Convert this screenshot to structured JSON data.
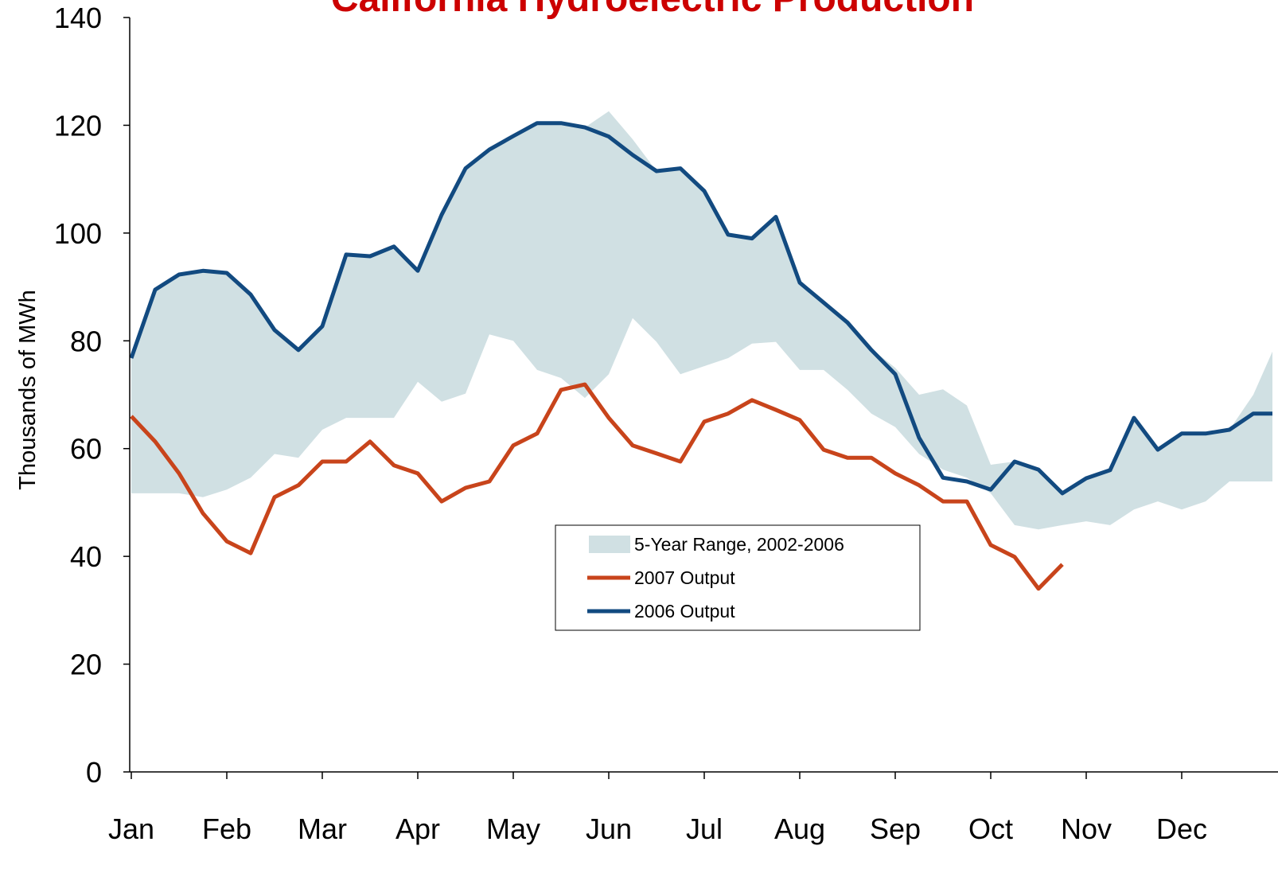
{
  "chart_data": {
    "type": "line",
    "title": "California Hydroelectric Production",
    "y_label": "Thousands of MWh",
    "xlim": [
      0,
      12
    ],
    "xticks": [
      {
        "value": 0,
        "label": "Jan"
      },
      {
        "value": 1,
        "label": "Feb"
      },
      {
        "value": 2,
        "label": "Mar"
      },
      {
        "value": 3,
        "label": "Apr"
      },
      {
        "value": 4,
        "label": "May"
      },
      {
        "value": 5,
        "label": "Jun"
      },
      {
        "value": 6,
        "label": "Jul"
      },
      {
        "value": 7,
        "label": "Aug"
      },
      {
        "value": 8,
        "label": "Sep"
      },
      {
        "value": 9,
        "label": "Oct"
      },
      {
        "value": 10,
        "label": "Nov"
      },
      {
        "value": 11,
        "label": "Dec"
      }
    ],
    "ylim": [
      0,
      140
    ],
    "yticks": [
      0,
      20,
      40,
      60,
      80,
      100,
      120,
      140
    ],
    "x": [
      0,
      0.25,
      0.5,
      0.75,
      1,
      1.25,
      1.5,
      1.75,
      2,
      2.25,
      2.5,
      2.75,
      3,
      3.25,
      3.5,
      3.75,
      4,
      4.25,
      4.5,
      4.75,
      5,
      5.25,
      5.5,
      5.75,
      6,
      6.25,
      6.5,
      6.75,
      7,
      7.25,
      7.5,
      7.75,
      8,
      8.25,
      8.5,
      8.75,
      9,
      9.25,
      9.5,
      9.75,
      10,
      10.25,
      10.5,
      10.75,
      11,
      11.25,
      11.5,
      11.75,
      11.95
    ],
    "series": [
      {
        "name": "5-Year Range, 2002-2006",
        "type": "range",
        "color": "#d0e0e3",
        "values": [
          77,
          89.5,
          92.3,
          93,
          92.6,
          88.6,
          82,
          78.3,
          82.7,
          96,
          95.7,
          97.5,
          93,
          103.4,
          112,
          115.5,
          118,
          120.4,
          120.4,
          119.6,
          122.6,
          117.4,
          111.5,
          112,
          107.8,
          99.7,
          99,
          103,
          90.8,
          87.1,
          83.4,
          78.5,
          75,
          70,
          71,
          68,
          57,
          57.6,
          56.1,
          51.7,
          54.5,
          56,
          65.7,
          59.8,
          62.8,
          62.8,
          63.5,
          70,
          78
        ],
        "lower": [
          51.7,
          51.7,
          51.7,
          51,
          52.4,
          54.6,
          59,
          58.3,
          63.5,
          65.7,
          65.7,
          65.7,
          72.4,
          68.7,
          70.2,
          81.2,
          80,
          74.6,
          73.1,
          69.4,
          73.8,
          84.2,
          79.8,
          73.8,
          75.3,
          76.8,
          79.5,
          79.8,
          74.6,
          74.6,
          70.9,
          66.5,
          64,
          59,
          56.1,
          54.6,
          51.7,
          45.8,
          45,
          45.8,
          46.5,
          45.8,
          48.7,
          50.2,
          48.7,
          50.2,
          53.9,
          53.9,
          53.9
        ]
      },
      {
        "name": "2007 Output",
        "color": "#c8441b",
        "values": [
          66,
          61.3,
          55.4,
          48,
          42.8,
          40.6,
          51,
          53.2,
          57.6,
          57.6,
          61.3,
          56.9,
          55.4,
          50.2,
          52.7,
          53.9,
          60.6,
          62.8,
          70.9,
          71.9,
          65.7,
          60.6,
          59.1,
          57.6,
          65,
          66.5,
          69,
          67.2,
          65.3,
          59.8,
          58.3,
          58.3,
          55.4,
          53.2,
          50.2,
          50.2,
          42.1,
          39.9,
          34,
          38.5,
          null,
          null,
          null,
          null,
          null,
          null,
          null,
          null,
          null
        ]
      },
      {
        "name": "2006 Output",
        "color": "#124a80",
        "values": [
          76.8,
          89.5,
          92.3,
          93,
          92.6,
          88.6,
          82,
          78.3,
          82.7,
          96,
          95.7,
          97.5,
          93,
          103.4,
          112,
          115.5,
          118,
          120.4,
          120.4,
          119.6,
          117.9,
          114.5,
          111.5,
          112,
          107.8,
          99.7,
          99,
          103,
          90.8,
          87.1,
          83.4,
          78.3,
          73.8,
          62,
          54.6,
          53.9,
          52.4,
          57.6,
          56.1,
          51.7,
          54.5,
          56,
          65.7,
          59.8,
          62.8,
          62.8,
          63.5,
          66.5,
          66.5
        ]
      }
    ]
  }
}
